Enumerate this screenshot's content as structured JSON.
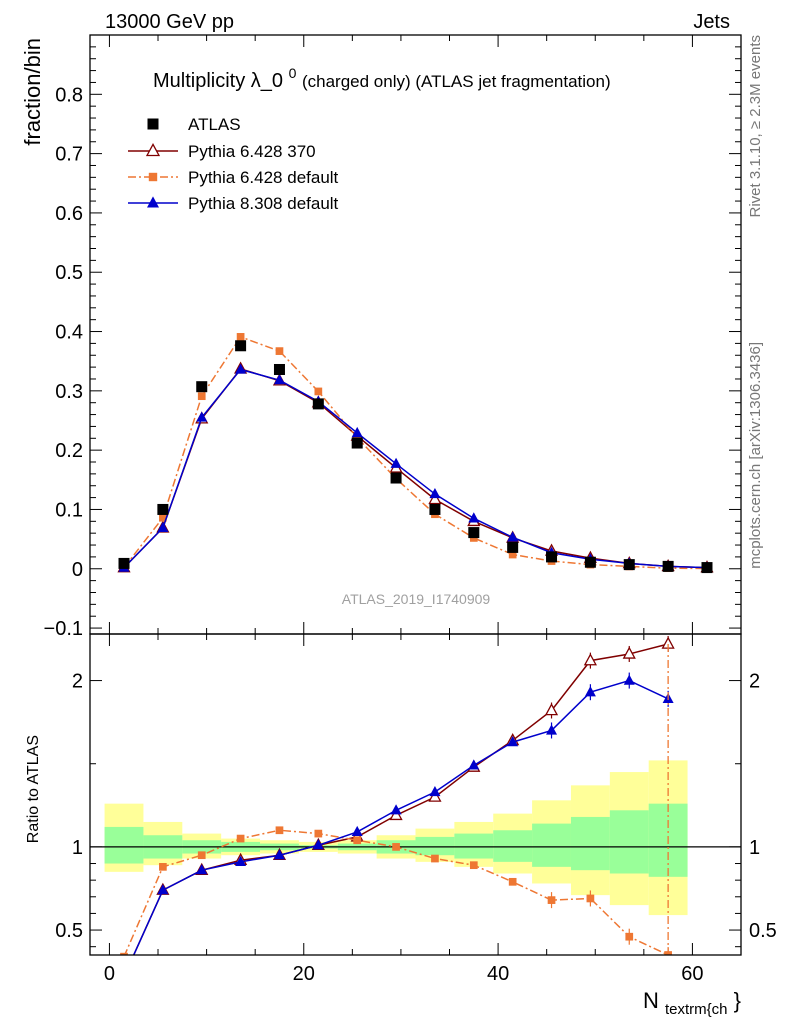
{
  "header": {
    "left": "13000 GeV pp",
    "right": "Jets"
  },
  "side_labels": {
    "rivet": "Rivet 3.1.10, ≥ 2.3M events",
    "mcplots": "mcplots.cern.ch [arXiv:1306.3436]"
  },
  "watermark": "ATLAS_2019_I1740909",
  "chart_data": {
    "type": "scatter",
    "title": {
      "main": "Multiplicity λ_0",
      "sup": "0",
      "rest": " (charged only) (ATLAS jet fragmentation)"
    },
    "xlabel": {
      "main": "N",
      "sub": "textrm{ch",
      "tail": "}"
    },
    "x_ticks": [
      "0",
      "20",
      "40",
      "60"
    ],
    "xlim": [
      -2,
      65
    ],
    "x": [
      1.5,
      5.5,
      9.5,
      13.5,
      17.5,
      21.5,
      25.5,
      29.5,
      33.5,
      37.5,
      41.5,
      45.5,
      49.5,
      53.5,
      57.5,
      61.5
    ],
    "main_panel": {
      "ylabel": "fraction/bin",
      "ylim": [
        -0.11,
        0.9
      ],
      "y_ticks": [
        "−0.1",
        "0",
        "0.1",
        "0.2",
        "0.3",
        "0.4",
        "0.5",
        "0.6",
        "0.7",
        "0.8"
      ],
      "series": [
        {
          "name": "ATLAS",
          "color": "#000000",
          "style": "data",
          "values": [
            0.009,
            0.1,
            0.307,
            0.376,
            0.336,
            0.278,
            0.212,
            0.153,
            0.1,
            0.061,
            0.036,
            0.02,
            0.011,
            0.007,
            0.004,
            0.002
          ]
        },
        {
          "name": "Pythia 6.428 370",
          "color": "#800000",
          "style": "open-triangle",
          "values": [
            0.002,
            0.069,
            0.253,
            0.337,
            0.317,
            0.28,
            0.224,
            0.17,
            0.117,
            0.08,
            0.052,
            0.03,
            0.018,
            0.009,
            0.004,
            0.002
          ]
        },
        {
          "name": "Pythia 6.428 default",
          "color": "#ee7733",
          "style": "dashdot-square",
          "values": [
            0.002,
            0.086,
            0.291,
            0.391,
            0.367,
            0.299,
            0.221,
            0.152,
            0.092,
            0.052,
            0.024,
            0.013,
            0.007,
            0.004,
            0.001,
            0.0005
          ]
        },
        {
          "name": "Pythia 8.308 default",
          "color": "#0000cc",
          "style": "filled-triangle",
          "values": [
            0.002,
            0.069,
            0.255,
            0.336,
            0.318,
            0.282,
            0.229,
            0.177,
            0.126,
            0.085,
            0.053,
            0.027,
            0.016,
            0.009,
            0.004,
            0.002
          ]
        }
      ]
    },
    "ratio_panel": {
      "ylabel": "Ratio to ATLAS",
      "ylim": [
        0.35,
        2.28
      ],
      "y_ticks": [
        "0.5",
        "1",
        "2"
      ],
      "reference": 1.0,
      "bands": {
        "bin_edges": [
          -0.5,
          3.5,
          7.5,
          11.5,
          15.5,
          19.5,
          23.5,
          27.5,
          31.5,
          35.5,
          39.5,
          43.5,
          47.5,
          51.5,
          55.5,
          59.5
        ],
        "green_colour": "#99ff99",
        "yellow_colour": "#ffff99",
        "green": [
          [
            0.9,
            1.12
          ],
          [
            0.93,
            1.07
          ],
          [
            0.96,
            1.04
          ],
          [
            0.97,
            1.03
          ],
          [
            0.98,
            1.02
          ],
          [
            0.99,
            1.01
          ],
          [
            0.98,
            1.02
          ],
          [
            0.96,
            1.04
          ],
          [
            0.95,
            1.06
          ],
          [
            0.93,
            1.08
          ],
          [
            0.91,
            1.1
          ],
          [
            0.88,
            1.14
          ],
          [
            0.86,
            1.18
          ],
          [
            0.84,
            1.22
          ],
          [
            0.82,
            1.26
          ]
        ],
        "yellow": [
          [
            0.85,
            1.26
          ],
          [
            0.89,
            1.15
          ],
          [
            0.93,
            1.08
          ],
          [
            0.95,
            1.05
          ],
          [
            0.96,
            1.04
          ],
          [
            0.97,
            1.03
          ],
          [
            0.96,
            1.04
          ],
          [
            0.93,
            1.07
          ],
          [
            0.91,
            1.11
          ],
          [
            0.88,
            1.15
          ],
          [
            0.84,
            1.2
          ],
          [
            0.78,
            1.28
          ],
          [
            0.71,
            1.37
          ],
          [
            0.65,
            1.45
          ],
          [
            0.59,
            1.52
          ]
        ]
      },
      "series": [
        {
          "name": "Pythia 6.428 370",
          "values": [
            0.22,
            0.74,
            0.86,
            0.92,
            0.95,
            1.01,
            1.06,
            1.19,
            1.3,
            1.48,
            1.64,
            1.82,
            2.12,
            2.16,
            2.22,
            null
          ]
        },
        {
          "name": "Pythia 6.428 default",
          "values": [
            0.34,
            0.88,
            0.95,
            1.05,
            1.1,
            1.08,
            1.04,
            1.0,
            0.93,
            0.89,
            0.79,
            0.68,
            0.69,
            0.46,
            0.35,
            null
          ]
        },
        {
          "name": "Pythia 8.308 default",
          "values": [
            0.22,
            0.74,
            0.86,
            0.91,
            0.95,
            1.01,
            1.09,
            1.22,
            1.33,
            1.49,
            1.63,
            1.7,
            1.93,
            2.0,
            1.89,
            null
          ]
        }
      ]
    }
  }
}
